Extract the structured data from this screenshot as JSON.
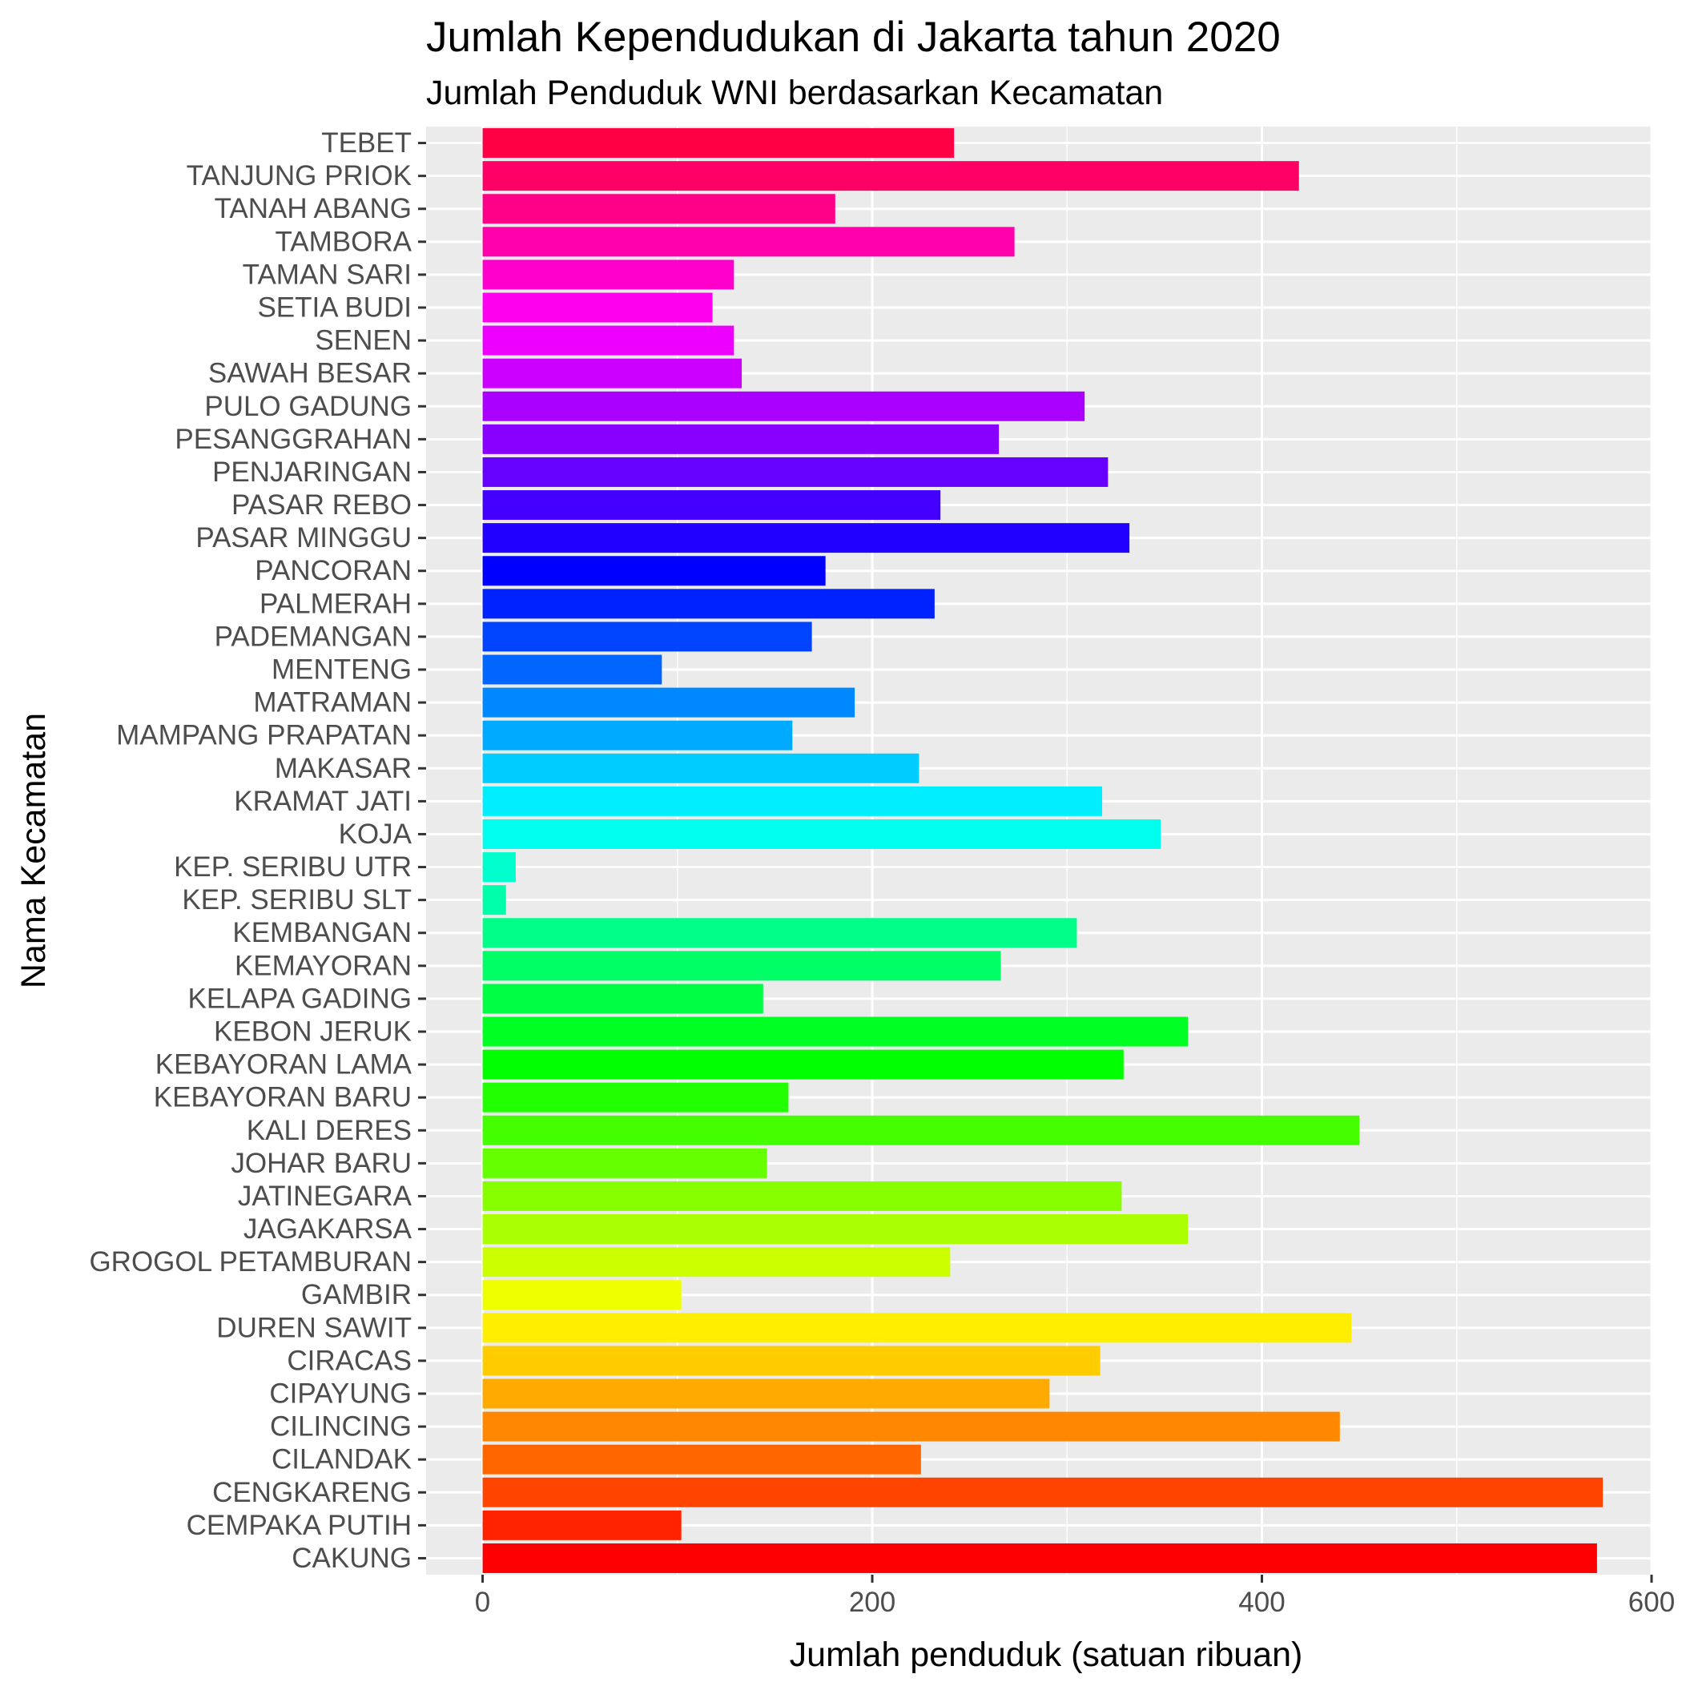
{
  "chart_data": {
    "type": "bar",
    "orientation": "horizontal",
    "title": "Jumlah Kependudukan di Jakarta tahun 2020",
    "subtitle": "Jumlah Penduduk WNI berdasarkan Kecamatan",
    "xlabel": "Jumlah penduduk (satuan ribuan)",
    "ylabel": "Nama Kecamatan",
    "xlim": [
      -29,
      600
    ],
    "xticks": [
      0,
      200,
      400,
      600
    ],
    "grid": true,
    "legend": "none",
    "panel_background": "#ebebeb",
    "categories": [
      "CAKUNG",
      "CEMPAKA PUTIH",
      "CENGKARENG",
      "CILANDAK",
      "CILINCING",
      "CIPAYUNG",
      "CIRACAS",
      "DUREN SAWIT",
      "GAMBIR",
      "GROGOL PETAMBURAN",
      "JAGAKARSA",
      "JATINEGARA",
      "JOHAR BARU",
      "KALI DERES",
      "KEBAYORAN BARU",
      "KEBAYORAN LAMA",
      "KEBON JERUK",
      "KELAPA GADING",
      "KEMAYORAN",
      "KEMBANGAN",
      "KEP. SERIBU SLT",
      "KEP. SERIBU UTR",
      "KOJA",
      "KRAMAT JATI",
      "MAKASAR",
      "MAMPANG PRAPATAN",
      "MATRAMAN",
      "MENTENG",
      "PADEMANGAN",
      "PALMERAH",
      "PANCORAN",
      "PASAR MINGGU",
      "PASAR REBO",
      "PENJARINGAN",
      "PESANGGRAHAN",
      "PULO GADUNG",
      "SAWAH BESAR",
      "SENEN",
      "SETIA BUDI",
      "TAMAN SARI",
      "TAMBORA",
      "TANAH ABANG",
      "TANJUNG PRIOK",
      "TEBET"
    ],
    "values": [
      572,
      102,
      575,
      225,
      440,
      291,
      317,
      446,
      102,
      240,
      362,
      328,
      146,
      450,
      157,
      329,
      362,
      144,
      266,
      305,
      12,
      17,
      348,
      318,
      224,
      159,
      191,
      92,
      169,
      232,
      176,
      332,
      235,
      321,
      265,
      309,
      133,
      129,
      118,
      129,
      273,
      181,
      419,
      242
    ],
    "colors": [
      "#ff0000",
      "#ff2200",
      "#ff4400",
      "#ff6600",
      "#ff8800",
      "#ffaa00",
      "#ffcc00",
      "#ffee00",
      "#eeff00",
      "#ccff00",
      "#aaff00",
      "#88ff00",
      "#66ff00",
      "#44ff00",
      "#22ff00",
      "#00ff00",
      "#00ff22",
      "#00ff44",
      "#00ff66",
      "#00ff88",
      "#00ffaa",
      "#00ffcc",
      "#00ffee",
      "#00eeff",
      "#00ccff",
      "#00aaff",
      "#0088ff",
      "#0066ff",
      "#0044ff",
      "#0022ff",
      "#0000ff",
      "#2200ff",
      "#4400ff",
      "#6600ff",
      "#8800ff",
      "#aa00ff",
      "#cc00ff",
      "#ee00ff",
      "#ff00ee",
      "#ff00cc",
      "#ff00aa",
      "#ff0088",
      "#ff0066",
      "#ff0044"
    ]
  }
}
